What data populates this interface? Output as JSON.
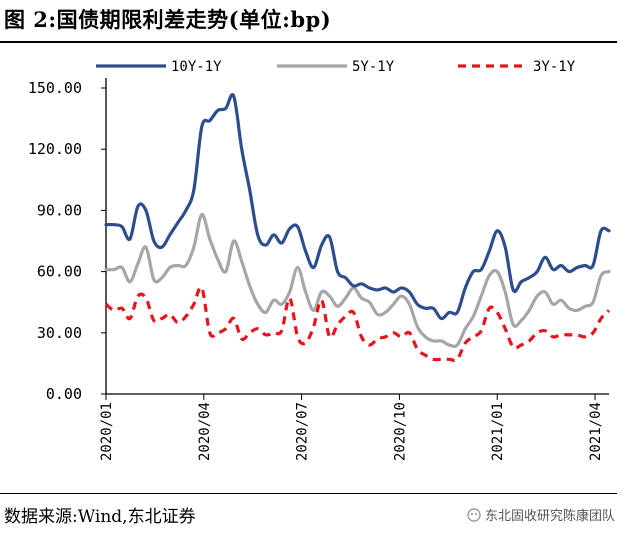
{
  "figure": {
    "title": "图 2:国债期限利差走势(单位:bp)",
    "source": "数据来源:Wind,东北证券",
    "watermark": "东北固收研究陈康团队"
  },
  "chart_data": {
    "type": "line",
    "title": "国债期限利差走势(单位:bp)",
    "xlabel": "",
    "ylabel": "",
    "ylim": [
      0,
      150
    ],
    "yticks": [
      "0.00",
      "30.00",
      "60.00",
      "90.00",
      "120.00",
      "150.00"
    ],
    "xticks": [
      "2020/01",
      "2020/04",
      "2020/07",
      "2020/10",
      "2021/01",
      "2021/04"
    ],
    "legend_position": "top",
    "grid": false,
    "x_range": [
      0,
      63
    ],
    "xtick_positions": [
      0,
      12.25,
      24.5,
      36.75,
      49,
      61.25
    ],
    "series": [
      {
        "name": "10Y-1Y",
        "color": "#2E4D8F",
        "style": "solid",
        "values": [
          83,
          83,
          82,
          76,
          92,
          90,
          75,
          72,
          78,
          84,
          90,
          100,
          131,
          134,
          139,
          140,
          146,
          120,
          100,
          78,
          73,
          78,
          74,
          81,
          82,
          70,
          62,
          73,
          77,
          60,
          57,
          53,
          54,
          52,
          51,
          52,
          50,
          52,
          50,
          44,
          42,
          42,
          37,
          40,
          40,
          52,
          60,
          61,
          70,
          80,
          72,
          51,
          55,
          57,
          60,
          67,
          61,
          63,
          60,
          62,
          63,
          63,
          80,
          80
        ],
        "color_semantic": "dark-blue"
      },
      {
        "name": "5Y-1Y",
        "color": "#A6A6A6",
        "style": "solid",
        "values": [
          61,
          61,
          62,
          55,
          64,
          72,
          56,
          57,
          62,
          63,
          63,
          72,
          88,
          76,
          66,
          60,
          75,
          65,
          53,
          44,
          40,
          46,
          44,
          50,
          62,
          50,
          41,
          50,
          48,
          43,
          47,
          52,
          47,
          45,
          39,
          40,
          44,
          48,
          44,
          33,
          28,
          26,
          26,
          24,
          24,
          32,
          38,
          48,
          58,
          60,
          50,
          34,
          36,
          41,
          48,
          50,
          44,
          46,
          42,
          41,
          43,
          45,
          58,
          60
        ]
      },
      {
        "name": "3Y-1Y",
        "color": "#E8141B",
        "style": "dashed",
        "values": [
          44,
          41,
          42,
          37,
          48,
          47,
          36,
          37,
          39,
          35,
          38,
          44,
          52,
          30,
          30,
          32,
          37,
          27,
          30,
          32,
          29,
          30,
          31,
          47,
          28,
          25,
          33,
          46,
          28,
          34,
          38,
          40,
          28,
          24,
          27,
          28,
          30,
          28,
          30,
          22,
          19,
          17,
          17,
          17,
          17,
          25,
          28,
          31,
          42,
          40,
          32,
          23,
          24,
          26,
          30,
          31,
          28,
          29,
          29,
          29,
          28,
          30,
          37,
          41
        ]
      }
    ]
  }
}
